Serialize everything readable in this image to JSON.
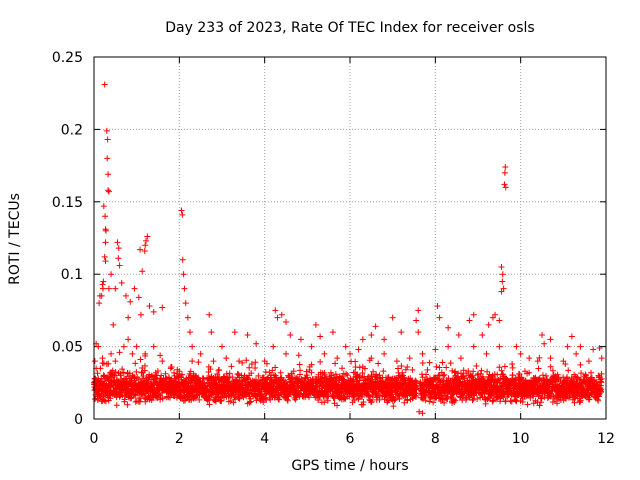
{
  "chart_data": {
    "type": "scatter",
    "title": "Day 233 of 2023, Rate Of TEC Index for receiver osls",
    "xlabel": "GPS time / hours",
    "ylabel": "ROTI / TECUs",
    "xlim": [
      0,
      12
    ],
    "ylim": [
      0,
      0.25
    ],
    "x_ticks": [
      0,
      2,
      4,
      6,
      8,
      10,
      12
    ],
    "x_tick_labels": [
      "0",
      "2",
      "4",
      "6",
      "8",
      "10",
      "12"
    ],
    "y_ticks": [
      0,
      0.05,
      0.1,
      0.15,
      0.2,
      0.25
    ],
    "y_tick_labels": [
      "0",
      "0.05",
      "0.1",
      "0.15",
      "0.2",
      "0.25"
    ],
    "grid": true,
    "marker": "+",
    "series": [
      {
        "name": "ROTI",
        "color": "#ff0000",
        "points": [
          [
            0.25,
            0.231
          ],
          [
            0.3,
            0.199
          ],
          [
            0.32,
            0.193
          ],
          [
            0.31,
            0.18
          ],
          [
            0.33,
            0.169
          ],
          [
            0.33,
            0.158
          ],
          [
            0.35,
            0.157
          ],
          [
            0.23,
            0.147
          ],
          [
            0.26,
            0.14
          ],
          [
            0.28,
            0.13
          ],
          [
            0.27,
            0.131
          ],
          [
            0.27,
            0.122
          ],
          [
            0.55,
            0.122
          ],
          [
            0.58,
            0.118
          ],
          [
            1.08,
            0.117
          ],
          [
            1.2,
            0.12
          ],
          [
            1.25,
            0.126
          ],
          [
            1.22,
            0.123
          ],
          [
            1.19,
            0.116
          ],
          [
            1.13,
            0.102
          ],
          [
            0.25,
            0.112
          ],
          [
            0.27,
            0.109
          ],
          [
            0.4,
            0.1
          ],
          [
            0.57,
            0.111
          ],
          [
            0.6,
            0.106
          ],
          [
            0.2,
            0.093
          ],
          [
            0.22,
            0.095
          ],
          [
            0.18,
            0.085
          ],
          [
            0.21,
            0.09
          ],
          [
            0.12,
            0.08
          ],
          [
            0.14,
            0.085
          ],
          [
            0.35,
            0.09
          ],
          [
            0.5,
            0.09
          ],
          [
            0.65,
            0.094
          ],
          [
            0.75,
            0.085
          ],
          [
            0.85,
            0.081
          ],
          [
            0.95,
            0.09
          ],
          [
            1.05,
            0.084
          ],
          [
            1.3,
            0.078
          ],
          [
            1.4,
            0.074
          ],
          [
            1.6,
            0.077
          ],
          [
            0.45,
            0.065
          ],
          [
            0.8,
            0.07
          ],
          [
            1.1,
            0.072
          ],
          [
            0.1,
            0.05
          ],
          [
            0.05,
            0.052
          ],
          [
            2.05,
            0.144
          ],
          [
            2.07,
            0.141
          ],
          [
            2.08,
            0.11
          ],
          [
            2.1,
            0.1
          ],
          [
            2.12,
            0.09
          ],
          [
            2.15,
            0.08
          ],
          [
            2.2,
            0.07
          ],
          [
            2.25,
            0.06
          ],
          [
            2.3,
            0.05
          ],
          [
            2.7,
            0.072
          ],
          [
            2.75,
            0.06
          ],
          [
            3.0,
            0.05
          ],
          [
            3.3,
            0.06
          ],
          [
            3.6,
            0.058
          ],
          [
            3.8,
            0.052
          ],
          [
            4.25,
            0.075
          ],
          [
            4.3,
            0.07
          ],
          [
            4.4,
            0.072
          ],
          [
            4.5,
            0.067
          ],
          [
            4.6,
            0.058
          ],
          [
            4.85,
            0.055
          ],
          [
            5.2,
            0.065
          ],
          [
            5.3,
            0.057
          ],
          [
            5.6,
            0.06
          ],
          [
            5.9,
            0.05
          ],
          [
            6.3,
            0.055
          ],
          [
            6.5,
            0.058
          ],
          [
            6.6,
            0.064
          ],
          [
            6.8,
            0.055
          ],
          [
            7.0,
            0.07
          ],
          [
            7.2,
            0.06
          ],
          [
            7.6,
            0.075
          ],
          [
            7.55,
            0.068
          ],
          [
            7.6,
            0.06
          ],
          [
            8.05,
            0.078
          ],
          [
            8.1,
            0.07
          ],
          [
            8.3,
            0.063
          ],
          [
            8.55,
            0.058
          ],
          [
            8.8,
            0.068
          ],
          [
            8.9,
            0.072
          ],
          [
            9.1,
            0.058
          ],
          [
            9.25,
            0.065
          ],
          [
            9.35,
            0.07
          ],
          [
            9.4,
            0.072
          ],
          [
            9.5,
            0.068
          ],
          [
            9.55,
            0.088
          ],
          [
            9.57,
            0.095
          ],
          [
            9.58,
            0.1
          ],
          [
            9.55,
            0.105
          ],
          [
            9.6,
            0.09
          ],
          [
            9.62,
            0.162
          ],
          [
            9.63,
            0.17
          ],
          [
            9.64,
            0.174
          ],
          [
            9.65,
            0.16
          ],
          [
            9.9,
            0.05
          ],
          [
            10.0,
            0.045
          ],
          [
            10.2,
            0.042
          ],
          [
            10.5,
            0.058
          ],
          [
            10.55,
            0.052
          ],
          [
            10.7,
            0.055
          ],
          [
            11.1,
            0.05
          ],
          [
            11.2,
            0.057
          ],
          [
            11.4,
            0.05
          ],
          [
            11.7,
            0.048
          ],
          [
            11.85,
            0.049
          ],
          [
            0.02,
            0.04
          ],
          [
            0.05,
            0.035
          ],
          [
            0.1,
            0.028
          ],
          [
            0.15,
            0.035
          ],
          [
            0.2,
            0.042
          ],
          [
            0.3,
            0.038
          ],
          [
            0.4,
            0.045
          ],
          [
            0.5,
            0.04
          ],
          [
            0.6,
            0.046
          ],
          [
            0.7,
            0.05
          ],
          [
            0.8,
            0.055
          ],
          [
            0.9,
            0.045
          ],
          [
            1.0,
            0.05
          ],
          [
            1.2,
            0.045
          ],
          [
            1.4,
            0.05
          ],
          [
            1.6,
            0.04
          ],
          [
            1.8,
            0.035
          ],
          [
            2.0,
            0.033
          ],
          [
            2.3,
            0.04
          ],
          [
            2.5,
            0.045
          ],
          [
            2.8,
            0.04
          ],
          [
            3.1,
            0.042
          ],
          [
            3.4,
            0.04
          ],
          [
            3.7,
            0.038
          ],
          [
            4.0,
            0.04
          ],
          [
            4.2,
            0.05
          ],
          [
            4.5,
            0.045
          ],
          [
            4.8,
            0.044
          ],
          [
            5.1,
            0.05
          ],
          [
            5.4,
            0.045
          ],
          [
            5.7,
            0.042
          ],
          [
            6.0,
            0.045
          ],
          [
            6.2,
            0.048
          ],
          [
            6.5,
            0.042
          ],
          [
            6.8,
            0.045
          ],
          [
            7.1,
            0.04
          ],
          [
            7.4,
            0.042
          ],
          [
            7.7,
            0.045
          ],
          [
            8.0,
            0.048
          ],
          [
            8.3,
            0.05
          ],
          [
            8.6,
            0.042
          ],
          [
            8.9,
            0.05
          ],
          [
            9.2,
            0.045
          ],
          [
            9.5,
            0.05
          ],
          [
            9.8,
            0.038
          ],
          [
            10.1,
            0.033
          ],
          [
            10.4,
            0.04
          ],
          [
            10.7,
            0.042
          ],
          [
            11.0,
            0.04
          ],
          [
            11.3,
            0.045
          ],
          [
            11.6,
            0.04
          ],
          [
            11.9,
            0.042
          ],
          [
            7.62,
            0.005
          ],
          [
            7.7,
            0.004
          ]
        ],
        "dense_band": {
          "x_range": [
            0,
            11.9
          ],
          "typical_y_range": [
            0.008,
            0.035
          ],
          "typical_center": 0.02,
          "gap_at_x": 7.6
        }
      }
    ]
  }
}
